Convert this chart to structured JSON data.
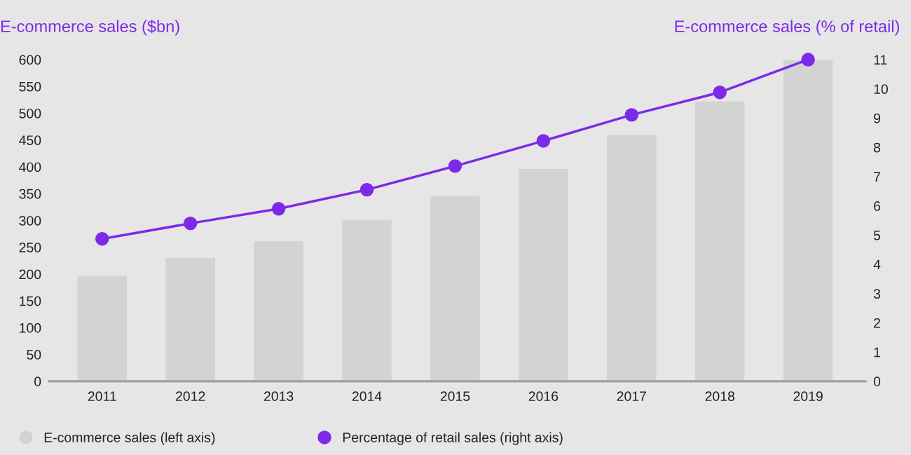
{
  "chart_data": {
    "type": "bar",
    "ylabel": "E-commerce sales ($bn)",
    "y2label": "E-commerce sales (% of retail)",
    "categories": [
      "2011",
      "2012",
      "2013",
      "2014",
      "2015",
      "2016",
      "2017",
      "2018",
      "2019"
    ],
    "series": [
      {
        "name": "E-commerce sales (left axis)",
        "color": "#d3d3d3",
        "values": [
          197,
          230,
          261,
          301,
          345,
          396,
          459,
          522,
          599
        ]
      },
      {
        "name": "Percentage of retail sales (right axis)",
        "type": "line",
        "axis": "y2",
        "color": "#7d2ae8",
        "values": [
          4.87,
          5.4,
          5.9,
          6.55,
          7.36,
          8.22,
          9.11,
          9.88,
          11.0
        ]
      }
    ],
    "ylim": [
      0,
      600
    ],
    "yticks": [
      0,
      50,
      100,
      150,
      200,
      250,
      300,
      350,
      400,
      450,
      500,
      550,
      600
    ],
    "y2lim": [
      0,
      11
    ],
    "y2ticks": [
      0,
      1,
      2,
      3,
      4,
      5,
      6,
      7,
      8,
      9,
      10,
      11
    ],
    "grid": false,
    "legend": "bottom left",
    "marker": "circle",
    "line_style": "solid"
  }
}
